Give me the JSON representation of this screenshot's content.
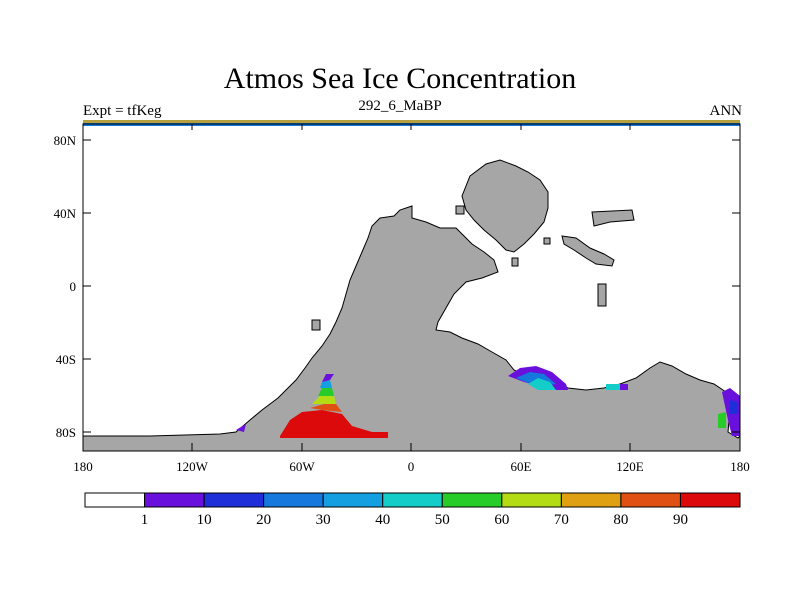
{
  "title": "Atmos Sea Ice Concentration",
  "subtitle_left": "Expt = tfKeg",
  "subtitle_center": "292_6_MaBP",
  "subtitle_right": "ANN",
  "map": {
    "lon_range": [
      -180,
      180
    ],
    "lat_range": [
      -90,
      90
    ],
    "x_ticks": [
      "180",
      "120W",
      "60W",
      "0",
      "60E",
      "120E",
      "180"
    ],
    "y_ticks": [
      "80N",
      "40N",
      "0",
      "40S",
      "80S"
    ],
    "land_color": "#a6a6a6",
    "ocean_color": "#ffffff"
  },
  "colorbar": {
    "labels": [
      "1",
      "10",
      "20",
      "30",
      "40",
      "50",
      "60",
      "70",
      "80",
      "90"
    ],
    "colors": [
      "#ffffff",
      "#6a10dc",
      "#1e2ed8",
      "#1478dc",
      "#14a0e0",
      "#14ccc8",
      "#28cc28",
      "#b4dc14",
      "#e0a014",
      "#e05014",
      "#dc0a0a"
    ]
  }
}
